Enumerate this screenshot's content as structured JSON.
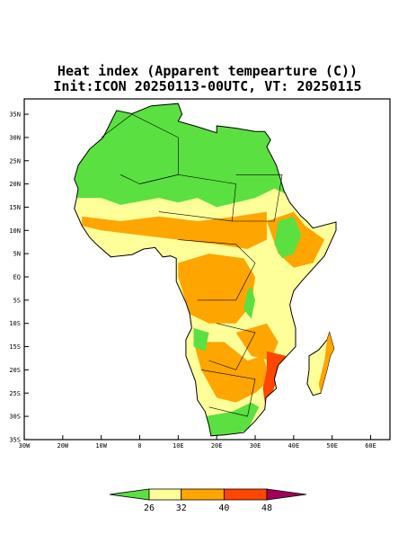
{
  "title": {
    "line1": "Heat index (Apparent tempearture (C))",
    "line2": "Init:ICON 20250113-00UTC, VT: 20250115"
  },
  "map": {
    "lat_labels": [
      "35N",
      "30N",
      "25N",
      "20N",
      "15N",
      "10N",
      "5N",
      "EQ",
      "5S",
      "10S",
      "15S",
      "20S",
      "25S",
      "30S",
      "35S"
    ],
    "lon_labels": [
      "30W",
      "20W",
      "10W",
      "0",
      "10E",
      "20E",
      "30E",
      "40E",
      "50E",
      "60E"
    ]
  },
  "colorbar": {
    "ticks": [
      26,
      32,
      40,
      48
    ],
    "colors": [
      "#5ae040",
      "#ffff99",
      "#ffa500",
      "#ff4500",
      "#a0005a"
    ]
  }
}
